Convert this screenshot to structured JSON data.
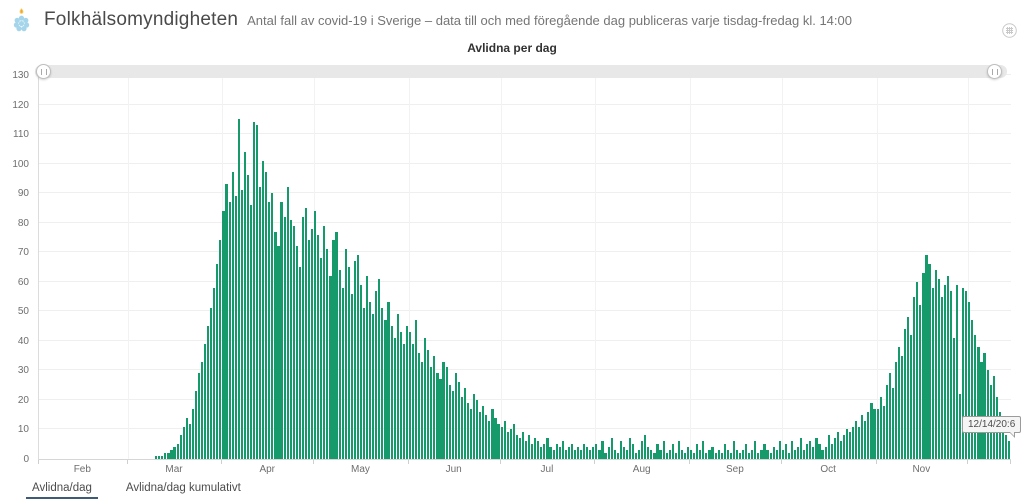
{
  "header": {
    "title": "Folkhälsomyndigheten",
    "subtitle": "Antal fall av covid-19 i Sverige – data till och med föregående dag publiceras varje tisdag-fredag kl. 14:00"
  },
  "chart": {
    "title": "Avlidna per dag",
    "tooltip": "12/14/20:6"
  },
  "tabs": [
    {
      "label": "Avlidna/dag",
      "active": true
    },
    {
      "label": "Avlidna/dag kumulativt",
      "active": false
    }
  ],
  "icons": {
    "logo": "folkhalsomyndigheten-emblem",
    "table": "data-table-grid-icon",
    "slider_handles": "pause-grip"
  },
  "colors": {
    "bar": "#179a6b",
    "tab_underline": "#3e5a75",
    "grid": "#efefef",
    "axis_text": "#6e6e6e"
  },
  "chart_data": {
    "type": "bar",
    "title": "Avlidna per dag",
    "xlabel": "",
    "ylabel": "",
    "ylim": [
      0,
      130
    ],
    "y_ticks": [
      0,
      10,
      20,
      30,
      40,
      50,
      60,
      70,
      80,
      90,
      100,
      110,
      120,
      130
    ],
    "x_tick_labels": [
      "Feb",
      "Mar",
      "Apr",
      "May",
      "Jun",
      "Jul",
      "Aug",
      "Sep",
      "Oct",
      "Nov"
    ],
    "start_date": "2020-02-01",
    "end_date": "2020-12-14",
    "month_lengths": [
      29,
      31,
      30,
      31,
      30,
      31,
      31,
      30,
      31,
      30,
      14
    ],
    "grid": true,
    "legend": "none",
    "tooltip": {
      "label": "12/14/20:6",
      "index": 317,
      "value": 6
    },
    "values": [
      0,
      0,
      0,
      0,
      0,
      0,
      0,
      0,
      0,
      0,
      0,
      0,
      0,
      0,
      0,
      0,
      0,
      0,
      0,
      0,
      0,
      0,
      0,
      0,
      0,
      0,
      0,
      0,
      0,
      0,
      0,
      0,
      0,
      0,
      0,
      0,
      0,
      0,
      1,
      1,
      1,
      2,
      2,
      3,
      4,
      5,
      8,
      11,
      14,
      12,
      17,
      23,
      29,
      33,
      39,
      45,
      51,
      58,
      66,
      74,
      84,
      93,
      87,
      97,
      89,
      115,
      91,
      104,
      96,
      86,
      114,
      113,
      92,
      101,
      97,
      87,
      90,
      77,
      72,
      87,
      82,
      92,
      81,
      79,
      72,
      65,
      82,
      85,
      74,
      78,
      84,
      76,
      68,
      79,
      71,
      62,
      74,
      77,
      64,
      58,
      71,
      65,
      56,
      67,
      69,
      59,
      51,
      62,
      53,
      49,
      57,
      61,
      51,
      47,
      53,
      45,
      41,
      49,
      43,
      39,
      45,
      43,
      39,
      47,
      36,
      33,
      41,
      37,
      31,
      35,
      29,
      27,
      33,
      31,
      25,
      23,
      29,
      26,
      21,
      24,
      19,
      17,
      22,
      20,
      16,
      18,
      15,
      13,
      17,
      14,
      12,
      11,
      13,
      9,
      10,
      12,
      8,
      7,
      9,
      6,
      8,
      5,
      7,
      6,
      4,
      5,
      7,
      4,
      3,
      5,
      4,
      6,
      3,
      4,
      5,
      3,
      4,
      3,
      5,
      4,
      3,
      4,
      5,
      3,
      6,
      2,
      4,
      7,
      3,
      2,
      6,
      4,
      3,
      7,
      5,
      2,
      3,
      6,
      8,
      4,
      3,
      2,
      5,
      3,
      6,
      2,
      3,
      5,
      2,
      6,
      3,
      2,
      4,
      3,
      2,
      5,
      3,
      6,
      2,
      3,
      4,
      2,
      3,
      2,
      5,
      3,
      2,
      6,
      3,
      2,
      3,
      5,
      2,
      3,
      6,
      2,
      3,
      5,
      3,
      2,
      4,
      3,
      6,
      3,
      5,
      2,
      6,
      3,
      4,
      7,
      3,
      5,
      6,
      4,
      7,
      5,
      3,
      4,
      8,
      5,
      7,
      9,
      6,
      8,
      10,
      9,
      11,
      13,
      11,
      15,
      13,
      16,
      19,
      17,
      17,
      21,
      18,
      25,
      29,
      24,
      33,
      38,
      35,
      44,
      48,
      42,
      55,
      60,
      52,
      63,
      69,
      66,
      58,
      64,
      61,
      55,
      59,
      62,
      57,
      41,
      59,
      22,
      58,
      57,
      53,
      47,
      42,
      38,
      33,
      36,
      30,
      25,
      28,
      21,
      16,
      11,
      8,
      6
    ]
  }
}
